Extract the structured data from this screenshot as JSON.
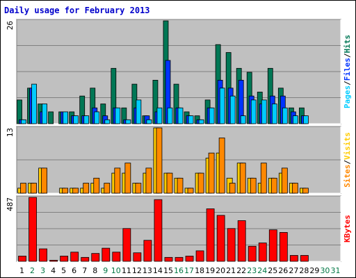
{
  "window": {
    "title": "Daily usage for February 2013"
  },
  "colors": {
    "background": "#c0c0c0",
    "pages": "#00ccff",
    "files": "#0033ff",
    "hits": "#007755",
    "visits": "#ffcc00",
    "sites": "#ff8800",
    "kbytes": "#ff0000",
    "title": "#0000cc",
    "weekend_day_label": "#007744"
  },
  "chart_data": [
    {
      "type": "bar",
      "panel": "hits-files-pages",
      "ymax_label": "26",
      "ylim": [
        0,
        26
      ],
      "categories": [
        "1",
        "2",
        "3",
        "4",
        "5",
        "6",
        "7",
        "8",
        "9",
        "10",
        "11",
        "12",
        "13",
        "14",
        "15",
        "16",
        "17",
        "18",
        "19",
        "20",
        "21",
        "22",
        "23",
        "24",
        "25",
        "26",
        "27",
        "28"
      ],
      "series": [
        {
          "name": "Hits",
          "values": [
            6,
            9,
            5,
            3,
            3,
            3,
            7,
            9,
            5,
            14,
            4,
            10,
            2,
            11,
            26,
            10,
            3,
            2,
            6,
            20,
            18,
            14,
            13,
            8,
            14,
            9,
            4,
            4
          ]
        },
        {
          "name": "Files",
          "values": [
            1,
            9,
            3,
            0,
            3,
            2,
            2,
            4,
            2,
            4,
            1,
            4,
            2,
            3,
            16,
            4,
            2,
            1,
            4,
            11,
            9,
            11,
            7,
            5,
            7,
            7,
            3,
            2
          ]
        },
        {
          "name": "Pages",
          "values": [
            1,
            10,
            5,
            0,
            3,
            2,
            2,
            3,
            1,
            4,
            1,
            6,
            1,
            4,
            4,
            4,
            2,
            1,
            4,
            9,
            7,
            2,
            6,
            6,
            5,
            4,
            2,
            2
          ]
        }
      ],
      "legend": [
        "Pages",
        "Files",
        "Hits"
      ]
    },
    {
      "type": "bar",
      "panel": "visits-sites",
      "ymax_label": "13",
      "ylim": [
        0,
        13
      ],
      "categories": [
        "1",
        "2",
        "3",
        "4",
        "5",
        "6",
        "7",
        "8",
        "9",
        "10",
        "11",
        "12",
        "13",
        "14",
        "15",
        "16",
        "17",
        "18",
        "19",
        "20",
        "21",
        "22",
        "23",
        "24",
        "25",
        "26",
        "27",
        "28"
      ],
      "series": [
        {
          "name": "Visits",
          "values": [
            1,
            2,
            5,
            0,
            1,
            1,
            1,
            2,
            1,
            4,
            4,
            2,
            4,
            13,
            4,
            3,
            1,
            4,
            7,
            8,
            3,
            6,
            3,
            2,
            3,
            4,
            2,
            1
          ]
        },
        {
          "name": "Sites",
          "values": [
            2,
            2,
            5,
            0,
            1,
            1,
            2,
            3,
            2,
            5,
            6,
            2,
            5,
            13,
            4,
            3,
            1,
            4,
            8,
            11,
            2,
            6,
            3,
            6,
            3,
            5,
            2,
            1
          ]
        }
      ],
      "legend": [
        "Sites",
        "Visits"
      ]
    },
    {
      "type": "bar",
      "panel": "kbytes",
      "ymax_label": "487",
      "ylim": [
        0,
        487
      ],
      "categories": [
        "1",
        "2",
        "3",
        "4",
        "5",
        "6",
        "7",
        "8",
        "9",
        "10",
        "11",
        "12",
        "13",
        "14",
        "15",
        "16",
        "17",
        "18",
        "19",
        "20",
        "21",
        "22",
        "23",
        "24",
        "25",
        "26",
        "27",
        "28"
      ],
      "series": [
        {
          "name": "KBytes",
          "values": [
            40,
            487,
            95,
            8,
            40,
            70,
            30,
            60,
            100,
            70,
            250,
            65,
            160,
            470,
            30,
            30,
            40,
            80,
            400,
            350,
            250,
            310,
            115,
            140,
            240,
            220,
            45,
            45
          ]
        }
      ],
      "legend": [
        "KBytes"
      ]
    }
  ],
  "x_axis": {
    "days": [
      "1",
      "2",
      "3",
      "4",
      "5",
      "6",
      "7",
      "8",
      "9",
      "10",
      "11",
      "12",
      "13",
      "14",
      "15",
      "16",
      "17",
      "18",
      "19",
      "20",
      "21",
      "22",
      "23",
      "24",
      "25",
      "26",
      "27",
      "28",
      "29",
      "30",
      "31"
    ],
    "weekend_days": [
      "2",
      "3",
      "9",
      "10",
      "16",
      "17",
      "23",
      "24",
      "30",
      "31"
    ]
  }
}
